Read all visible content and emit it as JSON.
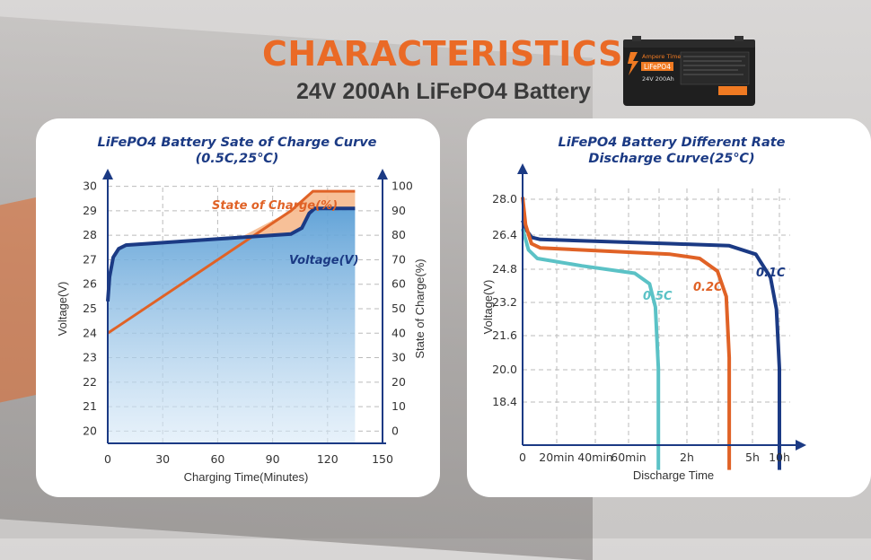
{
  "header": {
    "title": "CHARACTERISTICS",
    "subtitle": "24V 200Ah LiFePO4 Battery"
  },
  "battery_label": {
    "brand": "Ampere Time",
    "chem": "LiFePO4",
    "spec": "24V 200Ah"
  },
  "chart_data": [
    {
      "type": "line",
      "title": "LiFePO4 Battery Sate of Charge Curve",
      "subtitle": "(0.5C,25℃)",
      "xlabel": "Charging Time(Minutes)",
      "ylabel": "Voltage(V)",
      "y2label": "State of Charge(%)",
      "x_ticks": [
        "0",
        "30",
        "60",
        "90",
        "120",
        "150"
      ],
      "y_ticks": [
        "20",
        "21",
        "22",
        "23",
        "24",
        "25",
        "26",
        "27",
        "28",
        "29",
        "30"
      ],
      "y2_ticks": [
        "0",
        "10",
        "20",
        "30",
        "40",
        "50",
        "60",
        "70",
        "80",
        "90",
        "100"
      ],
      "xlim": [
        0,
        150
      ],
      "ylim": [
        19.5,
        30.5
      ],
      "y2lim": [
        -5,
        105
      ],
      "series": [
        {
          "name": "Voltage(V)",
          "axis": "left",
          "color": "#1b3a84",
          "points": [
            [
              0,
              25.3
            ],
            [
              1,
              26.3
            ],
            [
              3,
              27.1
            ],
            [
              6,
              27.45
            ],
            [
              10,
              27.6
            ],
            [
              20,
              27.65
            ],
            [
              40,
              27.75
            ],
            [
              60,
              27.85
            ],
            [
              80,
              27.95
            ],
            [
              100,
              28.05
            ],
            [
              106,
              28.3
            ],
            [
              110,
              28.9
            ],
            [
              113,
              29.1
            ],
            [
              135,
              29.1
            ]
          ]
        },
        {
          "name": "State of Charge(%)",
          "axis": "right",
          "color": "#e06226",
          "points": [
            [
              0,
              40
            ],
            [
              100,
              90
            ],
            [
              112,
              98
            ],
            [
              135,
              98
            ]
          ]
        }
      ]
    },
    {
      "type": "line",
      "title": "LiFePO4 Battery Different Rate",
      "subtitle": "Discharge Curve(25℃)",
      "xlabel": "Discharge Time",
      "ylabel": "Voltage(V)",
      "x_ticks": [
        "0",
        "20min",
        "40min",
        "60min",
        "2h",
        "5h",
        "10h"
      ],
      "y_ticks": [
        "28.0",
        "26.4",
        "24.8",
        "23.2",
        "21.6",
        "20.0",
        "18.4"
      ],
      "series": [
        {
          "name": "0.1C",
          "color": "#1b3a84",
          "points": [
            [
              0,
              27.0
            ],
            [
              1,
              26.6
            ],
            [
              3,
              26.2
            ],
            [
              6,
              26.1
            ],
            [
              50,
              25.9
            ],
            [
              70,
              25.8
            ],
            [
              79,
              25.4
            ],
            [
              84,
              24.3
            ],
            [
              86,
              22.8
            ],
            [
              87,
              20.0
            ],
            [
              87,
              15.2
            ]
          ]
        },
        {
          "name": "0.2C",
          "color": "#e06226",
          "points": [
            [
              0,
              28.1
            ],
            [
              1,
              26.8
            ],
            [
              3,
              25.9
            ],
            [
              6,
              25.7
            ],
            [
              50,
              25.4
            ],
            [
              60,
              25.2
            ],
            [
              66,
              24.6
            ],
            [
              69,
              23.4
            ],
            [
              70,
              20.5
            ],
            [
              70,
              15.2
            ]
          ]
        },
        {
          "name": "0.5C",
          "color": "#5bc2c6",
          "points": [
            [
              0,
              26.6
            ],
            [
              2,
              25.6
            ],
            [
              5,
              25.2
            ],
            [
              20,
              24.85
            ],
            [
              38,
              24.5
            ],
            [
              43,
              24.0
            ],
            [
              45,
              22.9
            ],
            [
              46,
              20.0
            ],
            [
              46,
              15.2
            ]
          ]
        }
      ]
    }
  ]
}
